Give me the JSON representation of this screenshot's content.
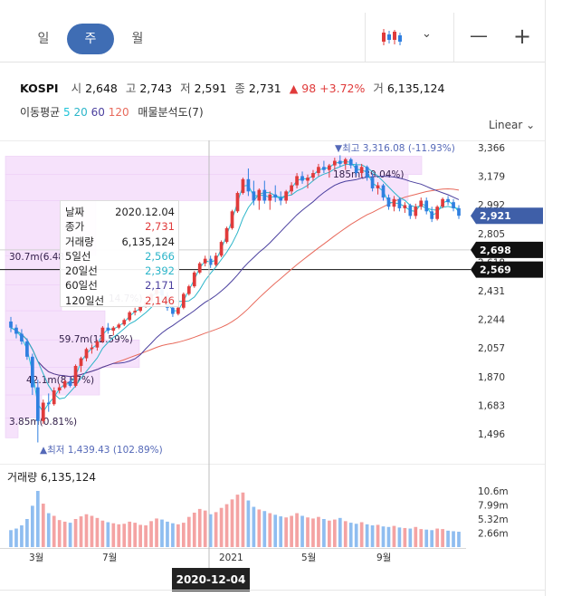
{
  "period_tabs": [
    {
      "label": "일",
      "active": false
    },
    {
      "label": "주",
      "active": true
    },
    {
      "label": "월",
      "active": false
    }
  ],
  "toolbar": {
    "candle_icon": "candlestick-icon",
    "chevron_icon": "chevron-down-icon",
    "minus": "—",
    "plus": "+"
  },
  "info": {
    "name": "KOSPI",
    "open_label": "시",
    "open": "2,648",
    "high_label": "고",
    "high": "2,743",
    "low_label": "저",
    "low": "2,591",
    "close_label": "종",
    "close": "2,731",
    "change": "▲ 98",
    "change_pct": "+3.72%",
    "volume_label": "거",
    "volume": "6,135,124"
  },
  "indicators": {
    "ma_label": "이동평균",
    "ma5": "5",
    "ma20": "20",
    "ma60": "60",
    "ma120": "120",
    "vp_label": "매물분석도(7)"
  },
  "scale_label": "Linear",
  "tooltip": {
    "rows": [
      {
        "k": "날짜",
        "v": "2020.12.04",
        "c": "#222222"
      },
      {
        "k": "종가",
        "v": "2,731",
        "c": "#e03b3b"
      },
      {
        "k": "거래량",
        "v": "6,135,124",
        "c": "#222222"
      },
      {
        "k": "5일선",
        "v": "2,566",
        "c": "#2bb5c9"
      },
      {
        "k": "20일선",
        "v": "2,392",
        "c": "#2bb5c9"
      },
      {
        "k": "60일선",
        "v": "2,171",
        "c": "#4a3f9e"
      },
      {
        "k": "120일선",
        "v": "2,146",
        "c": "#e03b3b"
      }
    ]
  },
  "volume_title": "거래량 6,135,124",
  "crosshair_date": "2020-12-04",
  "colors": {
    "up": "#e03b3b",
    "down": "#2f7fe0",
    "ma5": "#1ec3d8",
    "ma20": "#2bb5c9",
    "ma60": "#4a3f9e",
    "ma120": "#e86a5c",
    "vp": "#f6e2fb",
    "vol_up": "#f4a3a3",
    "vol_down": "#8fbdf0"
  },
  "chart_data": {
    "type": "candlestick",
    "price_axis": {
      "ticks": [
        "3,366",
        "3,179",
        "2,992",
        "2,805",
        "2,618",
        "2,431",
        "2,244",
        "2,057",
        "1,870",
        "1,683",
        "1,496"
      ],
      "values": [
        3366,
        3179,
        2992,
        2805,
        2618,
        2431,
        2244,
        2057,
        1870,
        1683,
        1496
      ]
    },
    "volume_axis": {
      "ticks": [
        "10.6m",
        "7.99m",
        "5.32m",
        "2.66m"
      ],
      "values": [
        10.6,
        7.99,
        5.32,
        2.66
      ]
    },
    "x_ticks": [
      "3월",
      "7월",
      "2021",
      "5월",
      "9월"
    ],
    "price_tags": [
      {
        "label": "2,921",
        "value": 2921,
        "style": "blue"
      },
      {
        "label": "2,698",
        "value": 2698,
        "style": "dark"
      },
      {
        "label": "2,569",
        "value": 2569,
        "style": "dark"
      }
    ],
    "annotations": {
      "high": "▼최고 3,316.08 (-11.93%)",
      "low": "▲최저 1,439.43 (102.89%)",
      "volume_profile": [
        "185m(39.04%)",
        "30.7m(6.48",
        "14.7%)",
        "59.7m(12.59%)",
        "42.1m(8.87%)",
        "3.85m(0.81%)"
      ]
    },
    "hlines": [
      {
        "value": 2569,
        "label": "2,569"
      },
      {
        "value": 2698,
        "label": "2,698"
      }
    ],
    "candles": [
      [
        2230,
        2260,
        2160,
        2190
      ],
      [
        2190,
        2210,
        2120,
        2150
      ],
      [
        2150,
        2180,
        2080,
        2100
      ],
      [
        2100,
        2120,
        1980,
        2000
      ],
      [
        2000,
        2020,
        1750,
        1800
      ],
      [
        1800,
        1850,
        1440,
        1580
      ],
      [
        1580,
        1720,
        1560,
        1700
      ],
      [
        1700,
        1760,
        1640,
        1690
      ],
      [
        1690,
        1800,
        1680,
        1780
      ],
      [
        1780,
        1820,
        1760,
        1800
      ],
      [
        1800,
        1850,
        1790,
        1840
      ],
      [
        1840,
        1860,
        1800,
        1810
      ],
      [
        1810,
        1950,
        1800,
        1940
      ],
      [
        1940,
        2000,
        1900,
        1990
      ],
      [
        1990,
        2060,
        1970,
        2050
      ],
      [
        2050,
        2080,
        2020,
        2060
      ],
      [
        2060,
        2110,
        2040,
        2100
      ],
      [
        2100,
        2200,
        2090,
        2190
      ],
      [
        2190,
        2220,
        2150,
        2170
      ],
      [
        2170,
        2200,
        2140,
        2190
      ],
      [
        2190,
        2220,
        2180,
        2210
      ],
      [
        2210,
        2250,
        2200,
        2240
      ],
      [
        2240,
        2300,
        2230,
        2290
      ],
      [
        2290,
        2320,
        2270,
        2300
      ],
      [
        2300,
        2340,
        2290,
        2330
      ],
      [
        2330,
        2370,
        2320,
        2360
      ],
      [
        2360,
        2420,
        2350,
        2410
      ],
      [
        2410,
        2460,
        2400,
        2440
      ],
      [
        2440,
        2460,
        2380,
        2400
      ],
      [
        2400,
        2420,
        2300,
        2320
      ],
      [
        2320,
        2350,
        2260,
        2280
      ],
      [
        2280,
        2330,
        2270,
        2320
      ],
      [
        2320,
        2420,
        2310,
        2410
      ],
      [
        2410,
        2470,
        2400,
        2460
      ],
      [
        2460,
        2560,
        2450,
        2550
      ],
      [
        2550,
        2620,
        2540,
        2610
      ],
      [
        2610,
        2660,
        2590,
        2640
      ],
      [
        2640,
        2660,
        2580,
        2600
      ],
      [
        2600,
        2680,
        2590,
        2660
      ],
      [
        2660,
        2760,
        2650,
        2750
      ],
      [
        2750,
        2850,
        2740,
        2840
      ],
      [
        2840,
        2960,
        2830,
        2950
      ],
      [
        2950,
        3080,
        2940,
        3070
      ],
      [
        3070,
        3170,
        3060,
        3160
      ],
      [
        3160,
        3230,
        3050,
        3080
      ],
      [
        3080,
        3150,
        2990,
        3020
      ],
      [
        3020,
        3100,
        2960,
        3090
      ],
      [
        3090,
        3150,
        3000,
        3020
      ],
      [
        3020,
        3080,
        2960,
        3060
      ],
      [
        3060,
        3120,
        3010,
        3040
      ],
      [
        3040,
        3080,
        2990,
        3020
      ],
      [
        3020,
        3090,
        3000,
        3080
      ],
      [
        3080,
        3140,
        3060,
        3120
      ],
      [
        3120,
        3200,
        3100,
        3180
      ],
      [
        3180,
        3210,
        3130,
        3150
      ],
      [
        3150,
        3190,
        3100,
        3170
      ],
      [
        3170,
        3220,
        3150,
        3200
      ],
      [
        3200,
        3260,
        3180,
        3240
      ],
      [
        3240,
        3280,
        3200,
        3220
      ],
      [
        3220,
        3260,
        3170,
        3250
      ],
      [
        3250,
        3300,
        3220,
        3280
      ],
      [
        3280,
        3316,
        3240,
        3260
      ],
      [
        3260,
        3300,
        3220,
        3290
      ],
      [
        3290,
        3300,
        3230,
        3250
      ],
      [
        3250,
        3270,
        3180,
        3200
      ],
      [
        3200,
        3260,
        3170,
        3240
      ],
      [
        3240,
        3250,
        3150,
        3170
      ],
      [
        3170,
        3200,
        3080,
        3100
      ],
      [
        3100,
        3140,
        3060,
        3120
      ],
      [
        3120,
        3130,
        3020,
        3040
      ],
      [
        3040,
        3060,
        2960,
        2980
      ],
      [
        2980,
        3050,
        2950,
        3030
      ],
      [
        3030,
        3040,
        2950,
        2970
      ],
      [
        2970,
        3010,
        2940,
        2990
      ],
      [
        2990,
        3000,
        2900,
        2920
      ],
      [
        2920,
        3000,
        2900,
        2980
      ],
      [
        2980,
        3040,
        2960,
        3020
      ],
      [
        3020,
        3040,
        2930,
        2950
      ],
      [
        2950,
        2980,
        2880,
        2900
      ],
      [
        2900,
        2990,
        2890,
        2980
      ],
      [
        2980,
        3040,
        2970,
        3030
      ],
      [
        3030,
        3050,
        2990,
        3010
      ],
      [
        3010,
        3030,
        2950,
        2970
      ],
      [
        2970,
        2990,
        2900,
        2921
      ]
    ],
    "volume": [
      3.2,
      3.5,
      4.1,
      5.3,
      7.8,
      10.6,
      8.2,
      6.4,
      5.9,
      5.1,
      4.8,
      4.6,
      5.3,
      5.8,
      6.2,
      5.9,
      5.5,
      5.0,
      4.7,
      4.5,
      4.3,
      4.4,
      4.8,
      4.6,
      4.2,
      4.1,
      4.9,
      5.4,
      5.2,
      4.8,
      4.5,
      4.3,
      4.6,
      5.7,
      6.5,
      7.2,
      6.9,
      6.2,
      6.6,
      7.4,
      8.1,
      9.0,
      9.9,
      10.3,
      8.8,
      7.6,
      7.1,
      6.8,
      6.4,
      6.1,
      5.8,
      5.6,
      5.9,
      6.4,
      5.9,
      5.6,
      5.4,
      5.7,
      5.3,
      5.0,
      5.2,
      5.5,
      4.9,
      4.6,
      4.4,
      4.7,
      4.3,
      4.1,
      4.2,
      3.9,
      3.8,
      4.0,
      3.7,
      3.6,
      3.5,
      3.8,
      3.4,
      3.3,
      3.2,
      3.5,
      3.4,
      3.1,
      3.0,
      2.9
    ]
  }
}
